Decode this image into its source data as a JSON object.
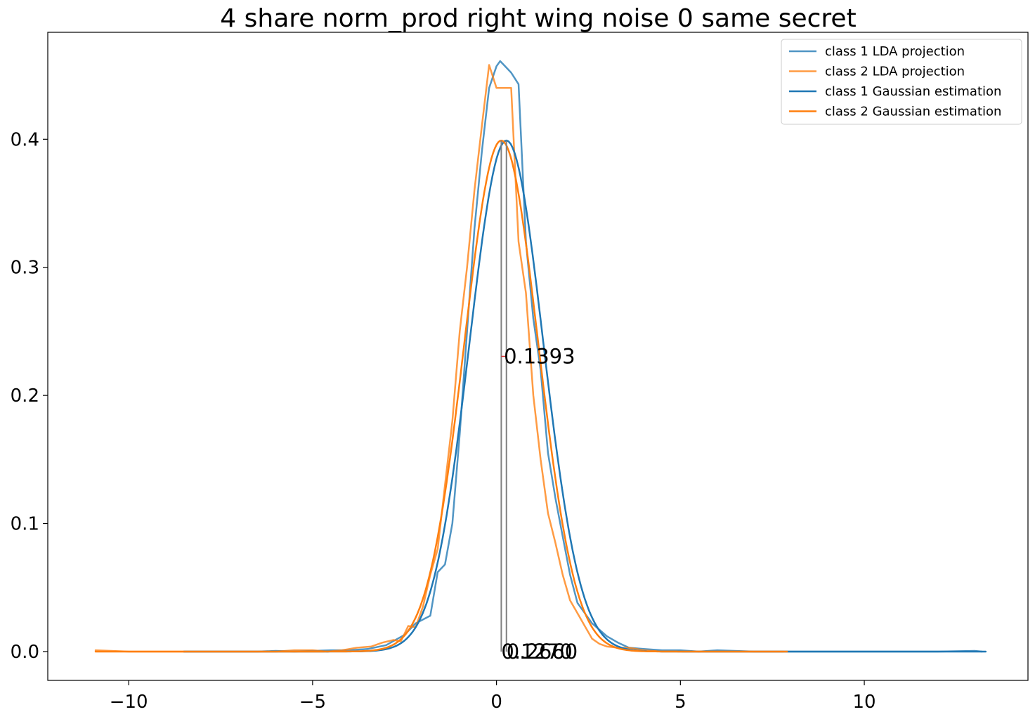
{
  "chart_data": {
    "type": "line",
    "title": "4 share norm_prod right wing noise 0 same secret",
    "xlabel": "",
    "ylabel": "",
    "xlim": [
      -12.2,
      14.45
    ],
    "ylim": [
      -0.0225,
      0.4835
    ],
    "xticks": [
      -10,
      -5,
      0,
      5,
      10
    ],
    "xtick_labels": [
      "−10",
      "−5",
      "0",
      "5",
      "10"
    ],
    "yticks": [
      0.0,
      0.1,
      0.2,
      0.3,
      0.4
    ],
    "ytick_labels": [
      "0.0",
      "0.1",
      "0.2",
      "0.3",
      "0.4"
    ],
    "grid": false,
    "legend_position": "top-right",
    "series": [
      {
        "name": "class 1 LDA projection",
        "kind": "lda",
        "color": "#1f77b4",
        "x": [
          -8.5,
          -7.5,
          -6.5,
          -6.0,
          -5.5,
          -5.0,
          -4.5,
          -4.0,
          -3.5,
          -3.0,
          -2.5,
          -2.2,
          -1.8,
          -1.6,
          -1.4,
          -1.2,
          -1.0,
          -0.8,
          -0.6,
          -0.4,
          -0.2,
          0.0,
          0.1,
          0.2,
          0.4,
          0.6,
          0.8,
          1.0,
          1.2,
          1.4,
          1.6,
          1.8,
          2.0,
          2.2,
          2.4,
          2.6,
          2.8,
          3.0,
          3.3,
          3.6,
          4.0,
          4.5,
          5.0,
          5.5,
          6.0,
          7.0,
          8.0,
          9.0,
          10.0,
          11.0,
          12.0,
          13.0,
          13.2
        ],
        "y": [
          0.0,
          0.0,
          0.0,
          0.0005,
          0.0,
          0.0005,
          0.001,
          0.001,
          0.002,
          0.005,
          0.013,
          0.022,
          0.028,
          0.062,
          0.068,
          0.1,
          0.17,
          0.25,
          0.33,
          0.39,
          0.44,
          0.457,
          0.461,
          0.458,
          0.452,
          0.443,
          0.32,
          0.26,
          0.22,
          0.155,
          0.12,
          0.09,
          0.06,
          0.038,
          0.03,
          0.022,
          0.017,
          0.012,
          0.007,
          0.003,
          0.002,
          0.001,
          0.001,
          0.0,
          0.001,
          0.0,
          0.0,
          0.0,
          0.0,
          0.0,
          0.0,
          0.0005,
          0.0
        ]
      },
      {
        "name": "class 2 LDA projection",
        "kind": "lda",
        "color": "#ff7f0e",
        "x": [
          -10.9,
          -10.0,
          -9.0,
          -8.0,
          -7.0,
          -6.0,
          -5.5,
          -5.0,
          -4.6,
          -4.2,
          -3.8,
          -3.4,
          -3.1,
          -2.8,
          -2.6,
          -2.4,
          -2.2,
          -2.0,
          -1.8,
          -1.6,
          -1.4,
          -1.2,
          -1.0,
          -0.8,
          -0.6,
          -0.4,
          -0.2,
          0.0,
          0.2,
          0.4,
          0.6,
          0.8,
          1.0,
          1.2,
          1.4,
          1.6,
          1.8,
          2.0,
          2.2,
          2.4,
          2.6,
          2.8,
          3.0,
          3.3,
          3.6,
          4.0,
          4.5,
          5.0,
          5.5,
          6.0,
          7.0,
          7.8
        ],
        "y": [
          0.001,
          0.0,
          0.0,
          0.0,
          0.0,
          0.0,
          0.001,
          0.001,
          0.0,
          0.001,
          0.003,
          0.004,
          0.007,
          0.009,
          0.008,
          0.02,
          0.019,
          0.035,
          0.06,
          0.08,
          0.13,
          0.18,
          0.25,
          0.3,
          0.36,
          0.41,
          0.458,
          0.44,
          0.44,
          0.44,
          0.32,
          0.28,
          0.2,
          0.15,
          0.108,
          0.085,
          0.06,
          0.04,
          0.03,
          0.02,
          0.01,
          0.006,
          0.004,
          0.003,
          0.003,
          0.001,
          0.0,
          0.0,
          0.0,
          0.0,
          0.0,
          0.0
        ]
      },
      {
        "name": "class 1 Gaussian estimation",
        "kind": "gauss",
        "color": "#1f77b4",
        "mean": 0.27,
        "std": 1.0,
        "amplitude": 0.399,
        "x_range": [
          -8.5,
          13.3
        ]
      },
      {
        "name": "class 2 Gaussian estimation",
        "kind": "gauss",
        "color": "#ff7f0e",
        "mean": 0.13,
        "std": 1.0,
        "amplitude": 0.399,
        "x_range": [
          -10.9,
          7.9
        ]
      }
    ],
    "vlines": [
      {
        "x": 0.13,
        "y0": 0.0,
        "y1": 0.399,
        "color": "#808080"
      },
      {
        "x": 0.27,
        "y0": 0.0,
        "y1": 0.399,
        "color": "#808080"
      }
    ],
    "hmarks": [
      {
        "x0": 0.13,
        "x1": 0.27,
        "y": 0.2305,
        "color": "#d62728"
      }
    ],
    "annotations": [
      {
        "text": "0.1393",
        "x": 0.2,
        "y": 0.2305
      },
      {
        "text": "0.1270",
        "x": 0.13,
        "y": 0.0
      },
      {
        "text": "0.2660",
        "x": 0.27,
        "y": 0.0
      }
    ]
  }
}
